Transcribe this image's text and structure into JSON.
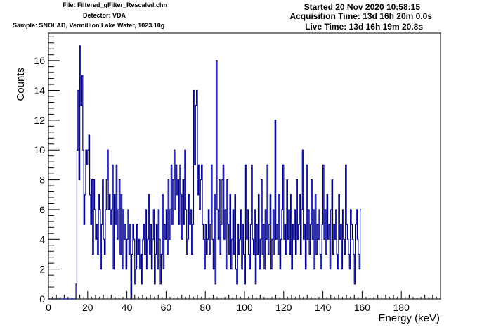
{
  "header": {
    "file": "File: Filtered_gFilter_Rescaled.chn",
    "detector": "Detector: VDA",
    "sample": "Sample: SNOLAB, Vermillion Lake Water, 1023.10g",
    "started": "Started 20 Nov 2020 10:58:15",
    "acquisition": "Acquisition Time: 13d 16h 20m 0.0s",
    "live": "Live Time: 13d 16h 19m 20.8s"
  },
  "colors": {
    "series": "#00008b",
    "axis": "#000000",
    "background": "#ffffff"
  },
  "chart_data": {
    "type": "histogram-step",
    "xlabel": "Energy (keV)",
    "ylabel": "Counts",
    "xlim": [
      0,
      200
    ],
    "ylim": [
      0,
      17.85
    ],
    "xticks": [
      0,
      20,
      40,
      60,
      80,
      100,
      120,
      140,
      160,
      180
    ],
    "yticks": [
      0,
      2,
      4,
      6,
      8,
      10,
      12,
      14,
      16
    ],
    "grid": false,
    "legend": "none",
    "bin_width": 0.5,
    "counts": [
      0,
      0,
      0,
      0,
      0,
      0,
      0,
      0,
      0,
      0,
      0,
      0,
      0,
      0,
      0,
      0,
      0,
      0,
      0,
      0,
      0,
      0,
      0,
      0,
      0,
      0,
      0,
      0,
      1,
      10,
      14,
      8,
      17,
      13,
      15,
      10,
      5,
      7,
      10,
      9,
      10,
      11,
      7,
      5,
      8,
      3,
      8,
      6,
      4,
      5,
      3,
      7,
      6,
      2,
      5,
      8,
      4,
      3,
      6,
      8,
      10,
      6,
      7,
      5,
      6,
      9,
      2,
      7,
      5,
      9,
      4,
      6,
      8,
      3,
      7,
      2,
      6,
      4,
      5,
      2,
      4,
      6,
      3,
      5,
      0,
      3,
      5,
      4,
      1,
      2,
      5,
      3,
      4,
      2,
      3,
      1,
      4,
      5,
      3,
      6,
      2,
      4,
      7,
      3,
      5,
      2,
      4,
      6,
      1,
      3,
      5,
      2,
      6,
      4,
      1,
      3,
      7,
      2,
      5,
      4,
      6,
      3,
      8,
      4,
      6,
      9,
      5,
      8,
      10,
      6,
      9,
      7,
      8,
      5,
      9,
      7,
      4,
      8,
      5,
      10,
      6,
      3,
      4,
      7,
      5,
      6,
      3,
      5,
      14,
      9,
      13,
      14,
      7,
      9,
      6,
      8,
      9,
      5,
      4,
      2,
      5,
      3,
      4,
      6,
      3,
      5,
      9,
      4,
      2,
      7,
      1,
      16,
      6,
      4,
      8,
      3,
      5,
      8,
      9,
      4,
      6,
      2,
      8,
      5,
      3,
      7,
      2,
      4,
      6,
      3,
      7,
      2,
      1,
      5,
      3,
      4,
      6,
      2,
      5,
      3,
      1,
      9,
      4,
      6,
      3,
      2,
      5,
      9,
      4,
      3,
      6,
      1,
      5,
      3,
      7,
      2,
      4,
      8,
      3,
      5,
      2,
      6,
      4,
      9,
      3,
      5,
      7,
      2,
      4,
      6,
      3,
      12,
      4,
      5,
      3,
      7,
      2,
      4,
      6,
      9,
      4,
      5,
      3,
      8,
      4,
      6,
      3,
      7,
      2,
      5,
      4,
      6,
      3,
      8,
      4,
      5,
      7,
      3,
      6,
      10,
      4,
      5,
      2,
      9,
      4,
      6,
      3,
      5,
      8,
      4,
      6,
      2,
      7,
      3,
      5,
      4,
      6,
      3,
      2,
      5,
      9,
      4,
      6,
      3,
      7,
      4,
      5,
      2,
      6,
      8,
      3,
      5,
      4,
      6,
      3,
      2,
      7,
      4,
      5,
      2,
      6,
      4,
      3,
      9,
      5,
      4,
      3,
      2,
      6,
      5,
      4,
      3,
      1,
      5,
      6,
      4,
      3,
      2,
      6
    ]
  }
}
